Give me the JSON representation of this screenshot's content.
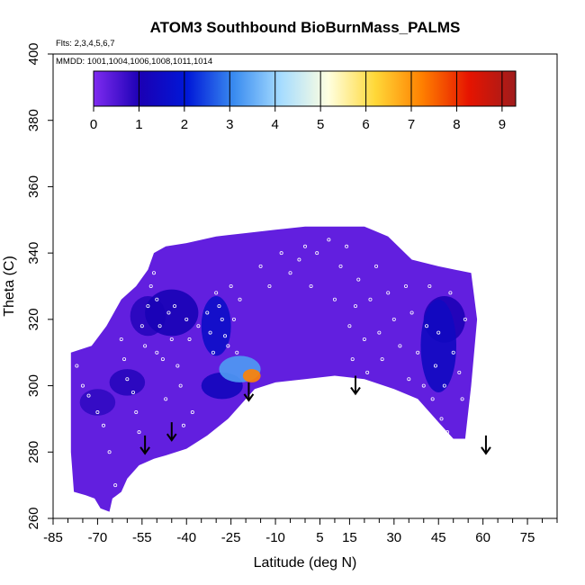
{
  "chart_data": {
    "type": "heatmap",
    "title": "ATOM3 Southbound BioBurnMass_PALMS",
    "flights_note": "Flts: 2,3,4,5,6,7",
    "mmdd_note": "MMDD: 1001,1004,1006,1008,1011,1014",
    "xlabel": "Latitude (deg N)",
    "ylabel": "Theta (C)",
    "xlim": [
      -85,
      85
    ],
    "ylim": [
      260,
      400
    ],
    "x_ticks": [
      -85,
      -70,
      -55,
      -40,
      -25,
      -10,
      5,
      15,
      30,
      45,
      60,
      75
    ],
    "y_ticks": [
      260,
      280,
      300,
      320,
      340,
      360,
      380,
      400
    ],
    "colorbar": {
      "range": [
        0,
        9.3
      ],
      "ticks": [
        0,
        1,
        2,
        3,
        4,
        5,
        6,
        7,
        8,
        9
      ],
      "colors": [
        "#7f2bf0",
        "#1a00b4",
        "#0018d8",
        "#3a8cf0",
        "#a6dcff",
        "#ffffe0",
        "#ffd838",
        "#ff8000",
        "#e61400",
        "#a01c1c"
      ]
    },
    "background_value": 0.3,
    "outline": [
      [
        -79,
        300
      ],
      [
        -79,
        310
      ],
      [
        -72,
        312
      ],
      [
        -67,
        318
      ],
      [
        -62,
        326
      ],
      [
        -57,
        330
      ],
      [
        -53,
        335
      ],
      [
        -51,
        340
      ],
      [
        -47,
        342
      ],
      [
        -40,
        343
      ],
      [
        -30,
        345
      ],
      [
        -20,
        346
      ],
      [
        -10,
        347
      ],
      [
        0,
        348
      ],
      [
        10,
        348
      ],
      [
        20,
        348
      ],
      [
        28,
        345
      ],
      [
        36,
        338
      ],
      [
        45,
        336
      ],
      [
        56,
        334
      ],
      [
        58,
        320
      ],
      [
        56,
        300
      ],
      [
        55,
        292
      ],
      [
        54,
        284
      ],
      [
        50,
        284
      ],
      [
        45,
        289
      ],
      [
        38,
        296
      ],
      [
        30,
        299
      ],
      [
        20,
        302
      ],
      [
        10,
        303
      ],
      [
        0,
        302
      ],
      [
        -10,
        301
      ],
      [
        -17,
        299
      ],
      [
        -22,
        294
      ],
      [
        -26,
        290
      ],
      [
        -33,
        285
      ],
      [
        -40,
        281
      ],
      [
        -47,
        279
      ],
      [
        -51,
        278
      ],
      [
        -56,
        276
      ],
      [
        -60,
        272
      ],
      [
        -62,
        268
      ],
      [
        -65,
        266
      ],
      [
        -66,
        262
      ],
      [
        -69,
        263
      ],
      [
        -71,
        266
      ],
      [
        -74,
        267
      ],
      [
        -78,
        268
      ],
      [
        -79,
        280
      ]
    ],
    "features": [
      {
        "lat": -45,
        "theta": 322,
        "value": 1.1,
        "rx": 9,
        "ry": 7
      },
      {
        "lat": -53,
        "theta": 321,
        "value": 0.9,
        "rx": 6,
        "ry": 6
      },
      {
        "lat": -30,
        "theta": 318,
        "value": 1.6,
        "rx": 5,
        "ry": 9
      },
      {
        "lat": -28,
        "theta": 300,
        "value": 1.3,
        "rx": 7,
        "ry": 4
      },
      {
        "lat": -22,
        "theta": 305,
        "value": 3.3,
        "rx": 7,
        "ry": 4
      },
      {
        "lat": -18,
        "theta": 303,
        "value": 7.2,
        "rx": 3,
        "ry": 2
      },
      {
        "lat": 45,
        "theta": 312,
        "value": 1.4,
        "rx": 6,
        "ry": 14
      },
      {
        "lat": 47,
        "theta": 320,
        "value": 1.0,
        "rx": 7,
        "ry": 7
      },
      {
        "lat": -60,
        "theta": 301,
        "value": 0.9,
        "rx": 6,
        "ry": 4
      },
      {
        "lat": -70,
        "theta": 295,
        "value": 0.8,
        "rx": 6,
        "ry": 4
      }
    ],
    "samples": [
      [
        -77,
        306
      ],
      [
        -75,
        300
      ],
      [
        -73,
        297
      ],
      [
        -70,
        292
      ],
      [
        -68,
        288
      ],
      [
        -66,
        280
      ],
      [
        -64,
        270
      ],
      [
        -62,
        314
      ],
      [
        -61,
        308
      ],
      [
        -60,
        302
      ],
      [
        -58,
        298
      ],
      [
        -57,
        292
      ],
      [
        -56,
        286
      ],
      [
        -55,
        318
      ],
      [
        -54,
        312
      ],
      [
        -53,
        324
      ],
      [
        -52,
        330
      ],
      [
        -51,
        334
      ],
      [
        -50,
        326
      ],
      [
        -50,
        310
      ],
      [
        -49,
        318
      ],
      [
        -48,
        308
      ],
      [
        -47,
        296
      ],
      [
        -46,
        322
      ],
      [
        -45,
        314
      ],
      [
        -44,
        324
      ],
      [
        -43,
        306
      ],
      [
        -42,
        300
      ],
      [
        -41,
        288
      ],
      [
        -40,
        320
      ],
      [
        -39,
        314
      ],
      [
        -38,
        292
      ],
      [
        -36,
        318
      ],
      [
        -33,
        322
      ],
      [
        -32,
        316
      ],
      [
        -31,
        310
      ],
      [
        -30,
        328
      ],
      [
        -29,
        324
      ],
      [
        -28,
        320
      ],
      [
        -27,
        315
      ],
      [
        -26,
        312
      ],
      [
        -25,
        330
      ],
      [
        -24,
        320
      ],
      [
        -23,
        310
      ],
      [
        -22,
        326
      ],
      [
        -15,
        336
      ],
      [
        -12,
        330
      ],
      [
        -8,
        340
      ],
      [
        -5,
        334
      ],
      [
        -2,
        338
      ],
      [
        0,
        342
      ],
      [
        2,
        330
      ],
      [
        4,
        340
      ],
      [
        8,
        344
      ],
      [
        10,
        326
      ],
      [
        12,
        336
      ],
      [
        14,
        342
      ],
      [
        15,
        318
      ],
      [
        16,
        308
      ],
      [
        17,
        324
      ],
      [
        18,
        332
      ],
      [
        20,
        314
      ],
      [
        21,
        304
      ],
      [
        22,
        326
      ],
      [
        24,
        336
      ],
      [
        25,
        316
      ],
      [
        26,
        308
      ],
      [
        28,
        328
      ],
      [
        30,
        320
      ],
      [
        32,
        312
      ],
      [
        34,
        330
      ],
      [
        35,
        302
      ],
      [
        36,
        322
      ],
      [
        38,
        310
      ],
      [
        40,
        300
      ],
      [
        41,
        318
      ],
      [
        42,
        330
      ],
      [
        43,
        296
      ],
      [
        44,
        306
      ],
      [
        45,
        316
      ],
      [
        46,
        290
      ],
      [
        47,
        300
      ],
      [
        48,
        286
      ],
      [
        49,
        328
      ],
      [
        50,
        310
      ],
      [
        52,
        304
      ],
      [
        53,
        296
      ],
      [
        54,
        320
      ]
    ],
    "arrows": [
      {
        "lat": -54,
        "theta": 285
      },
      {
        "lat": -45,
        "theta": 289
      },
      {
        "lat": -19,
        "theta": 301
      },
      {
        "lat": 17,
        "theta": 303
      },
      {
        "lat": 61,
        "theta": 285
      }
    ]
  }
}
